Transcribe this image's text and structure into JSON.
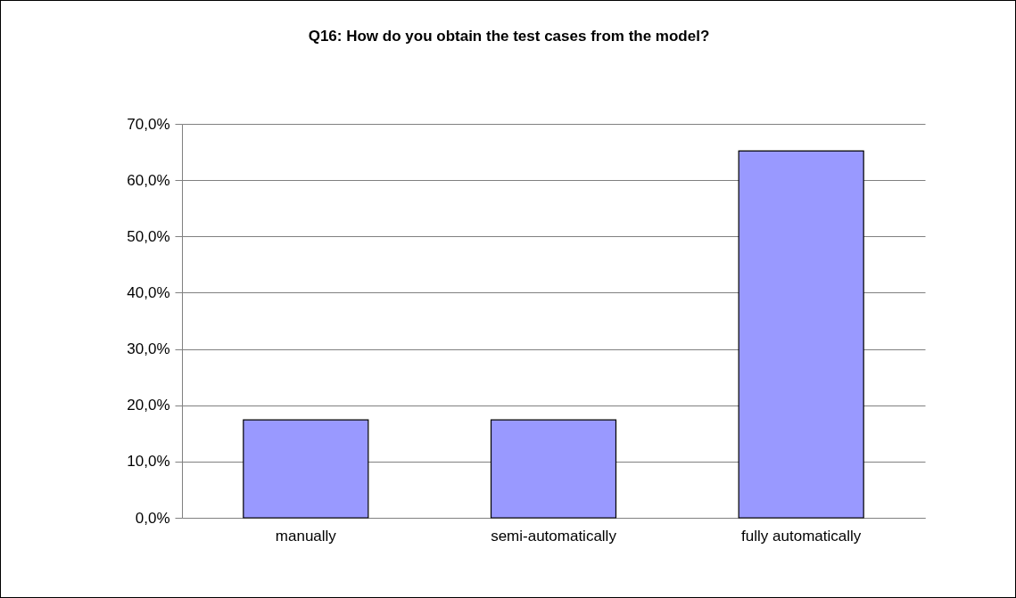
{
  "chart_data": {
    "type": "bar",
    "title": "Q16: How do you obtain the test cases from the model?",
    "categories": [
      "manually",
      "semi-automatically",
      "fully automatically"
    ],
    "values": [
      17.4,
      17.4,
      65.2
    ],
    "color": "#9999ff",
    "ylim": [
      0,
      70
    ],
    "yticks": [
      {
        "value": 0,
        "label": "0,0%"
      },
      {
        "value": 10,
        "label": "10,0%"
      },
      {
        "value": 20,
        "label": "20,0%"
      },
      {
        "value": 30,
        "label": "30,0%"
      },
      {
        "value": 40,
        "label": "40,0%"
      },
      {
        "value": 50,
        "label": "50,0%"
      },
      {
        "value": 60,
        "label": "60,0%"
      },
      {
        "value": 70,
        "label": "70,0%"
      }
    ],
    "grid": "y"
  }
}
